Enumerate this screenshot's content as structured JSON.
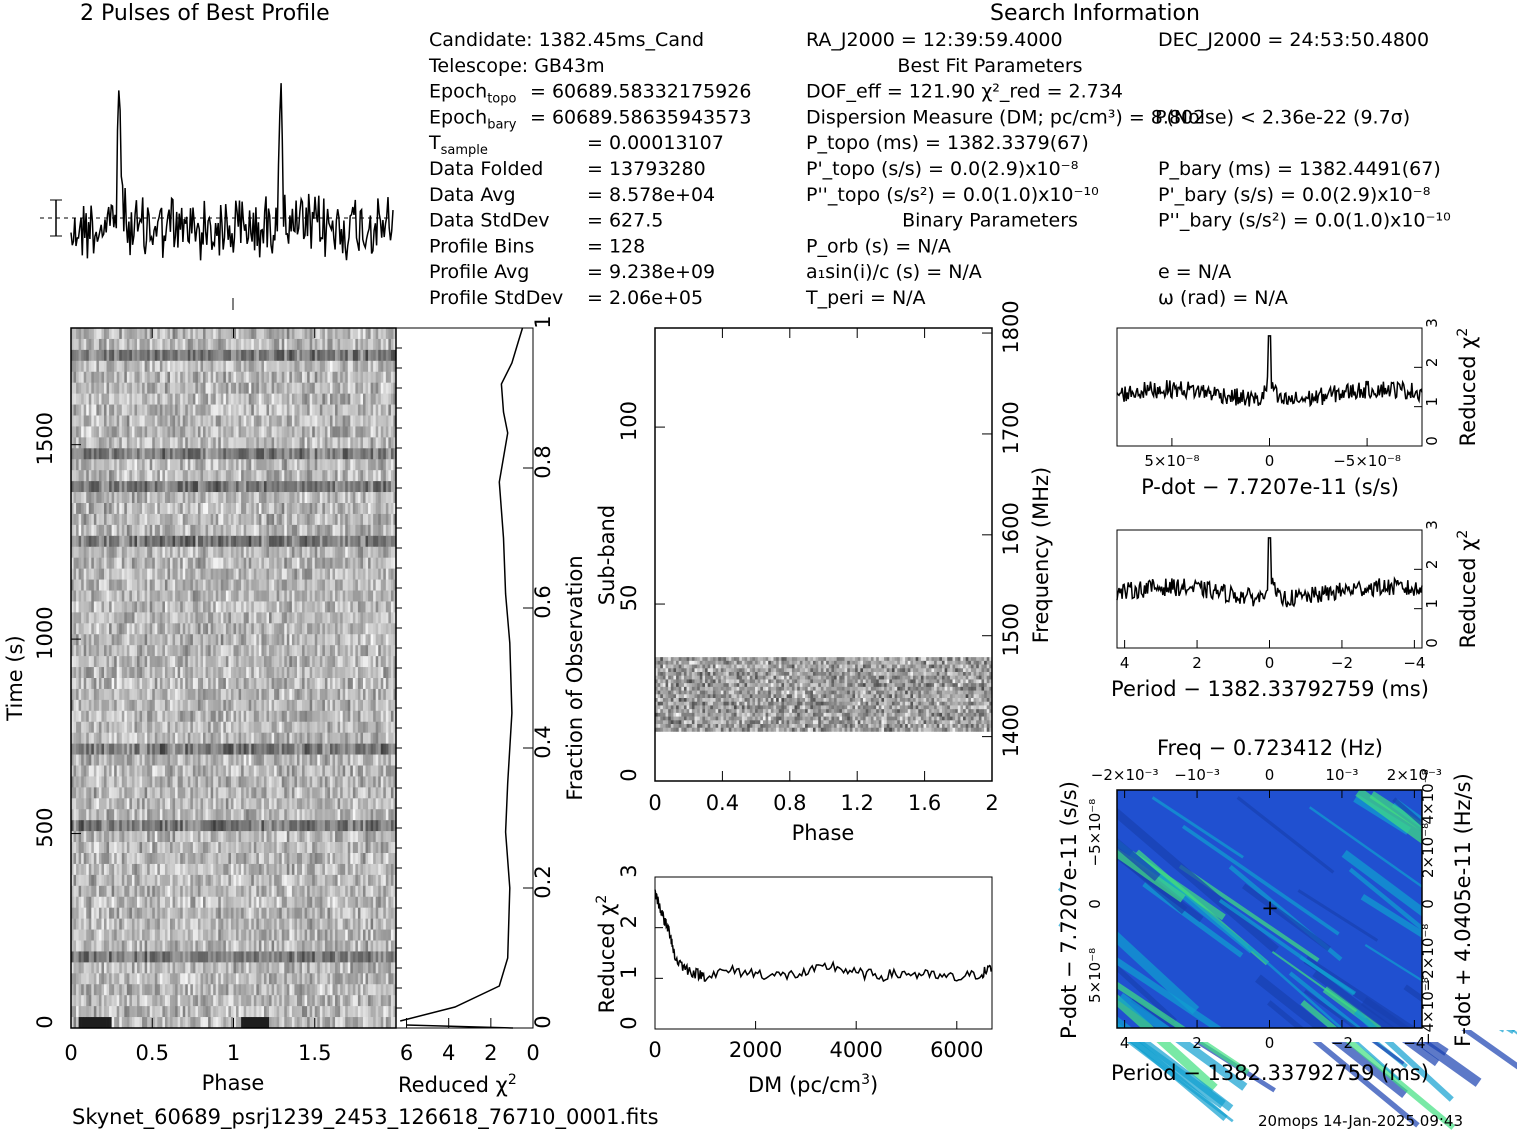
{
  "title_profile": "2 Pulses of Best Profile",
  "title_search": "Search Information",
  "info_left": [
    {
      "k": "Candidate:  1382.45ms_Cand",
      "v": ""
    },
    {
      "k": "Telescope:  GB43m",
      "v": ""
    },
    {
      "k": "Epoch",
      "sub": "topo",
      "v": "= 60689.58332175926"
    },
    {
      "k": "Epoch",
      "sub": "bary",
      "v": "= 60689.58635943573"
    },
    {
      "k": "T",
      "sub": "sample",
      "v": "=   0.00013107"
    },
    {
      "k": "Data Folded",
      "v": "=   13793280"
    },
    {
      "k": "Data Avg",
      "v": "=   8.578e+04"
    },
    {
      "k": "Data StdDev",
      "v": "=   627.5"
    },
    {
      "k": "Profile Bins",
      "v": "=   128"
    },
    {
      "k": "Profile Avg",
      "v": "=   9.238e+09"
    },
    {
      "k": "Profile StdDev",
      "v": "=   2.06e+05"
    }
  ],
  "info_mid": [
    "RA_J2000 = 12:39:59.4000",
    "Best Fit Parameters",
    "DOF_eff = 121.90  χ²_red = 2.734",
    "Dispersion Measure (DM; pc/cm³) = 8.802",
    "P_topo (ms) =  1382.3379(67)",
    "P'_topo (s/s) = 0.0(2.9)x10⁻⁸",
    "P''_topo (s/s²) = 0.0(1.0)x10⁻¹⁰",
    "Binary Parameters",
    "P_orb (s) = N/A",
    "a₁sin(i)/c (s) = N/A",
    "T_peri = N/A"
  ],
  "info_right": [
    "DEC_J2000 = 24:53:50.4800",
    "P(Noise) < 2.36e-22  (9.7σ)",
    "P_bary (ms) =  1382.4491(67)",
    "P'_bary (s/s) = 0.0(2.9)x10⁻⁸",
    "P''_bary (s/s²) = 0.0(1.0)x10⁻¹⁰",
    "e = N/A",
    "ω (rad) = N/A"
  ],
  "filename": "Skynet_60689_psrj1239_2453_126618_76710_0001.fits",
  "footer": "20mops 14-Jan-2025 09:43",
  "chart_data": [
    {
      "type": "line",
      "name": "profile",
      "x_phase": [
        0,
        2
      ],
      "peaks_phase": [
        0.3,
        1.3
      ],
      "error_bar": "±σ at left"
    },
    {
      "type": "heatmap",
      "name": "time-vs-phase",
      "xlabel": "Phase",
      "ylabel": "Time (s)",
      "xlim": [
        0,
        2
      ],
      "ylim": [
        0,
        1800
      ],
      "xticks": [
        "0",
        "0.5",
        "1",
        "1.5"
      ],
      "yticks": [
        "0",
        "500",
        "1000",
        "1500"
      ]
    },
    {
      "type": "line",
      "name": "reduced-chi2-vs-time",
      "xlabel": "Reduced χ²",
      "ylabel": "Fraction of Observation",
      "xlim": [
        6,
        0
      ],
      "xticks": [
        "6",
        "4",
        "2",
        "0"
      ],
      "yticks": [
        "0",
        "0.2",
        "0.4",
        "0.6",
        "0.8",
        "1"
      ],
      "x": [
        6.3,
        3.7,
        1.6,
        1.2,
        1.1,
        1.3,
        1.2,
        1.0,
        1.1,
        1.3,
        1.4,
        1.6,
        1.2,
        1.4,
        1.5,
        1.0,
        0.7,
        0.5
      ],
      "y": [
        0.01,
        0.03,
        0.06,
        0.1,
        0.2,
        0.28,
        0.35,
        0.45,
        0.55,
        0.62,
        0.7,
        0.78,
        0.85,
        0.88,
        0.92,
        0.95,
        0.98,
        1.0
      ]
    },
    {
      "type": "heatmap",
      "name": "subband-vs-phase",
      "xlabel": "Phase",
      "ylabel": "Sub-band",
      "y2label": "Frequency (MHz)",
      "xlim": [
        0,
        2
      ],
      "ylim": [
        0,
        128
      ],
      "xticks": [
        "0",
        "0.4",
        "0.8",
        "1.2",
        "1.6",
        "2"
      ],
      "yticks": [
        "0",
        "50",
        "100"
      ],
      "y2ticks": [
        "1400",
        "1500",
        "1600",
        "1700",
        "1800"
      ],
      "data_subbands": [
        14,
        35
      ]
    },
    {
      "type": "line",
      "name": "dm-curve",
      "xlabel": "DM (pc/cm³)",
      "ylabel": "Reduced χ²",
      "xlim": [
        0,
        6700
      ],
      "ylim": [
        0,
        3
      ],
      "xticks": [
        "0",
        "2000",
        "4000",
        "6000"
      ],
      "yticks": [
        "0",
        "1",
        "2",
        "3"
      ],
      "x": [
        0,
        100,
        200,
        300,
        400,
        600,
        800,
        1000,
        1500,
        2000,
        2500,
        3000,
        3500,
        4000,
        4500,
        5000,
        5500,
        6000,
        6500,
        6700
      ],
      "y": [
        2.7,
        2.4,
        2.1,
        1.9,
        1.4,
        1.2,
        1.1,
        1.05,
        1.15,
        1.1,
        1.05,
        1.1,
        1.25,
        1.1,
        1.05,
        1.1,
        1.05,
        1.0,
        1.1,
        1.2
      ]
    },
    {
      "type": "line",
      "name": "pdot-curve",
      "xlabel": "P-dot − 7.7207e-11 (s/s)",
      "ylabel": "Reduced χ²",
      "ylim": [
        0,
        3
      ],
      "yticks": [
        "0",
        "1",
        "2",
        "3"
      ],
      "xticks": [
        "5×10⁻⁸",
        "0",
        "−5×10⁻⁸"
      ],
      "peak": 2.8,
      "baseline": 1.3
    },
    {
      "type": "line",
      "name": "period-curve",
      "xlabel": "Period − 1382.33792759 (ms)",
      "ylabel": "Reduced χ²",
      "xlim": [
        4,
        -4
      ],
      "ylim": [
        0,
        3
      ],
      "yticks": [
        "0",
        "1",
        "2",
        "3"
      ],
      "xticks": [
        "4",
        "2",
        "0",
        "−2",
        "−4"
      ],
      "peak": 2.8,
      "baseline": 1.4
    },
    {
      "type": "heatmap",
      "name": "p-pdot-plane",
      "title": "Freq − 0.723412 (Hz)",
      "xlabel": "Period − 1382.33792759 (ms)",
      "ylabel": "P-dot − 7.7207e-11 (s/s)",
      "y2label": "F-dot + 4.0405e-11 (Hz/s)",
      "xticks": [
        "4",
        "2",
        "0",
        "−2",
        "−4"
      ],
      "topticks": [
        "−2×10⁻³",
        "−10⁻³",
        "0",
        "10⁻³",
        "2×10⁻³"
      ],
      "yticks": [
        "−5×10⁻⁸",
        "0",
        "5×10⁻⁸"
      ],
      "y2ticks": [
        "4×10⁻⁸",
        "2×10⁻⁸",
        "0",
        "−2×10⁻⁸",
        "−4×10⁻⁸"
      ]
    }
  ],
  "labels": {
    "phase": "Phase",
    "time": "Time (s)",
    "redchi": "Reduced χ",
    "frac": "Fraction of Observation",
    "subband": "Sub-band",
    "freq": "Frequency (MHz)",
    "dm": "DM (pc/cm",
    "pdot": "P-dot − 7.7207e-11 (s/s)",
    "period": "Period − 1382.33792759 (ms)",
    "freqtitle": "Freq − 0.723412 (Hz)",
    "pdotY": "P-dot − 7.7207e-11 (s/s)",
    "fdotY": "F-dot + 4.0405e-11 (Hz/s)"
  }
}
